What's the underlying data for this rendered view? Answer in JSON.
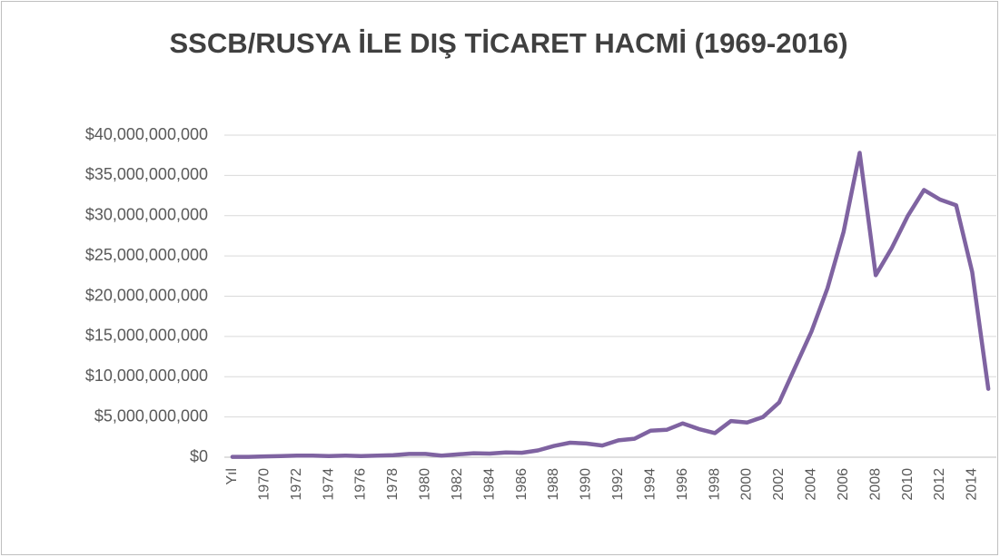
{
  "chart_data": {
    "type": "line",
    "title": "SSCB/RUSYA İLE DIŞ TİCARET HACMİ (1969-2016)",
    "categories": [
      "Yıl",
      null,
      "1970",
      null,
      "1972",
      null,
      "1974",
      null,
      "1976",
      null,
      "1978",
      null,
      "1980",
      null,
      "1982",
      null,
      "1984",
      null,
      "1986",
      null,
      "1988",
      null,
      "1990",
      null,
      "1992",
      null,
      "1994",
      null,
      "1996",
      null,
      "1998",
      null,
      "2000",
      null,
      "2002",
      null,
      "2004",
      null,
      "2006",
      null,
      "2008",
      null,
      "2010",
      null,
      "2012",
      null,
      "2014",
      null
    ],
    "series": [
      {
        "name": "Dış Ticaret Hacmi",
        "color": "#7f63a1",
        "values": [
          50000000,
          50000000,
          100000000,
          150000000,
          200000000,
          200000000,
          150000000,
          200000000,
          150000000,
          200000000,
          250000000,
          400000000,
          400000000,
          200000000,
          350000000,
          500000000,
          450000000,
          600000000,
          550000000,
          850000000,
          1400000000,
          1800000000,
          1700000000,
          1450000000,
          2100000000,
          2300000000,
          3300000000,
          3400000000,
          4200000000,
          3500000000,
          3000000000,
          4500000000,
          4300000000,
          5000000000,
          6800000000,
          11200000000,
          15600000000,
          21000000000,
          28000000000,
          37800000000,
          22600000000,
          26000000000,
          30000000000,
          33200000000,
          32000000000,
          31300000000,
          23000000000,
          8500000000
        ]
      }
    ],
    "ylim": [
      0,
      40000000000
    ],
    "yticks": [
      {
        "value": 0,
        "label": "$0"
      },
      {
        "value": 5000000000,
        "label": "$5,000,000,000"
      },
      {
        "value": 10000000000,
        "label": "$10,000,000,000"
      },
      {
        "value": 15000000000,
        "label": "$15,000,000,000"
      },
      {
        "value": 20000000000,
        "label": "$20,000,000,000"
      },
      {
        "value": 25000000000,
        "label": "$25,000,000,000"
      },
      {
        "value": 30000000000,
        "label": "$30,000,000,000"
      },
      {
        "value": 35000000000,
        "label": "$35,000,000,000"
      },
      {
        "value": 40000000000,
        "label": "$40,000,000,000"
      }
    ],
    "grid": true
  }
}
